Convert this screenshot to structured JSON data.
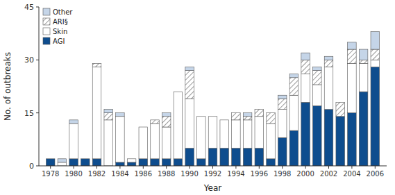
{
  "chart_data": {
    "type": "bar",
    "stacked": true,
    "x": [
      1978,
      1979,
      1980,
      1981,
      1982,
      1983,
      1984,
      1985,
      1986,
      1987,
      1988,
      1989,
      1990,
      1991,
      1992,
      1993,
      1994,
      1995,
      1996,
      1997,
      1998,
      1999,
      2000,
      2001,
      2002,
      2003,
      2004,
      2005,
      2006
    ],
    "series": [
      {
        "name": "AGI",
        "color": "#0e4d8e",
        "values": [
          2,
          0,
          2,
          2,
          2,
          0,
          1,
          1,
          2,
          2,
          2,
          2,
          5,
          2,
          5,
          5,
          5,
          5,
          5,
          2,
          8,
          10,
          18,
          17,
          16,
          14,
          15,
          21,
          28
        ]
      },
      {
        "name": "Skin",
        "color": "#ffffff",
        "values": [
          0,
          1,
          10,
          0,
          26,
          13,
          13,
          1,
          9,
          10,
          9,
          19,
          14,
          12,
          9,
          8,
          8,
          8,
          9,
          10,
          8,
          10,
          8,
          6,
          12,
          0,
          14,
          8,
          2
        ]
      },
      {
        "name": "ARI§",
        "color": "#ffffff",
        "values": [
          0,
          0,
          0,
          0,
          1,
          2,
          0,
          0,
          0,
          1,
          3,
          0,
          8,
          0,
          0,
          0,
          2,
          1,
          2,
          3,
          3,
          5,
          4,
          4,
          2,
          4,
          4,
          1,
          3
        ]
      },
      {
        "name": "Other",
        "color": "#c5d5e8",
        "values": [
          0,
          1,
          1,
          0,
          0,
          1,
          1,
          0,
          0,
          0,
          1,
          0,
          1,
          0,
          0,
          0,
          0,
          1,
          0,
          0,
          1,
          1,
          2,
          1,
          1,
          0,
          2,
          3,
          5
        ]
      }
    ],
    "xlabel": "Year",
    "ylabel": "No. of outbreaks",
    "xlim": [
      1977,
      2007
    ],
    "xticks": [
      1978,
      1980,
      1982,
      1984,
      1986,
      1988,
      1990,
      1992,
      1994,
      1996,
      1998,
      2000,
      2002,
      2004,
      2006
    ],
    "ylim": [
      0,
      45
    ],
    "yticks": [
      0,
      15,
      30,
      45
    ],
    "grid": false,
    "legend": "upper-left"
  }
}
